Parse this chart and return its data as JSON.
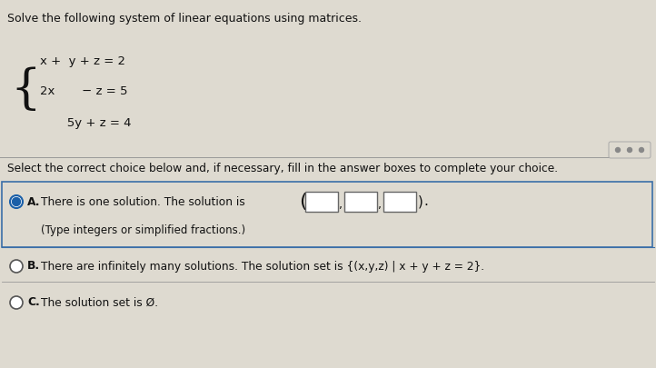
{
  "bg_color": "#dedad0",
  "text_color": "#111111",
  "title": "Solve the following system of linear equations using matrices.",
  "eq1_parts": [
    "x + ",
    " y + z = 2"
  ],
  "eq2_parts": [
    "2x",
    "       − z = 5"
  ],
  "eq3_parts": [
    "",
    "    5y + z = 4"
  ],
  "select_text": "Select the correct choice below and, if necessary, fill in the answer boxes to complete your choice.",
  "choice_A_main": "There is one solution. The solution is",
  "choice_A_sub": "(Type integers or simplified fractions.)",
  "choice_B": "There are infinitely many solutions. The solution set is {(x,y,z) | x + y + z = 2}.",
  "choice_C": "The solution set is Ø.",
  "selected": "A",
  "box_color": "#ffffff",
  "box_border": "#666666",
  "radio_selected_color": "#1a5fa8",
  "radio_unselected_color": "#555555",
  "separator_color": "#999999",
  "dots_color": "#888888"
}
